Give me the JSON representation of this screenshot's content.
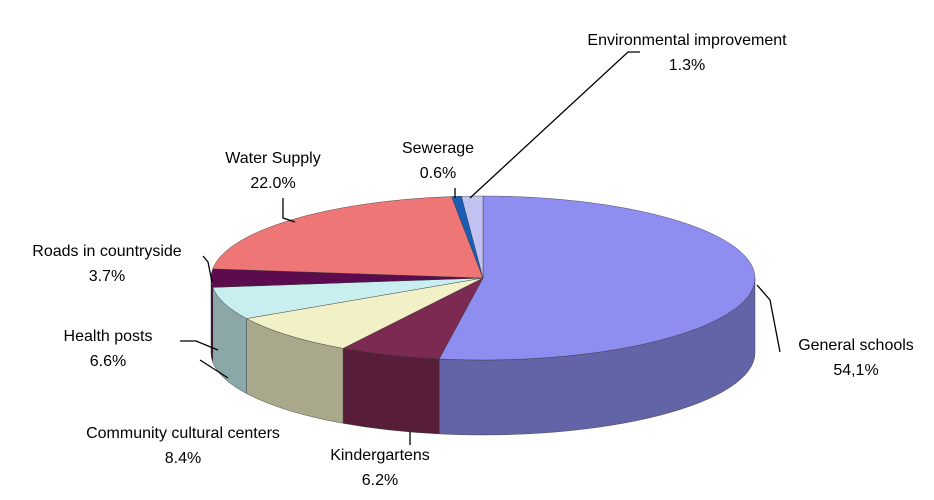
{
  "chart_data": {
    "type": "pie3d",
    "categories": [
      "General schools",
      "Kindergartens",
      "Community cultural centers",
      "Health posts",
      "Roads in countryside",
      "Water Supply",
      "Sewerage",
      "Environmental improvement"
    ],
    "values": [
      54.1,
      6.2,
      8.4,
      6.6,
      3.7,
      22.0,
      0.6,
      1.3
    ],
    "value_labels": [
      "54,1%",
      "6.2%",
      "8.4%",
      "6.6%",
      "3.7%",
      "22.0%",
      "0.6%",
      "1.3%"
    ],
    "colors": [
      "#8e8ef0",
      "#7d2a52",
      "#f2f0c6",
      "#c8eef0",
      "#5c0c4e",
      "#ee7676",
      "#1a5db6",
      "#c2c2f2"
    ]
  }
}
